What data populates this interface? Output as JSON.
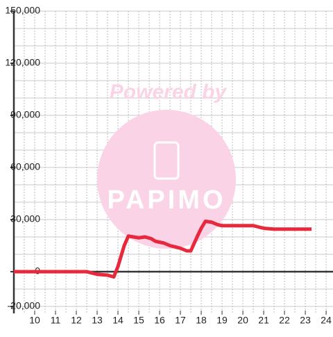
{
  "chart_data": {
    "type": "line",
    "x": [
      9,
      12.5,
      13,
      13.5,
      13.8,
      14,
      14.3,
      14.5,
      15,
      15.3,
      15.6,
      15.8,
      16.2,
      16.5,
      17,
      17.3,
      17.5,
      17.8,
      18,
      18.2,
      18.5,
      18.8,
      19,
      19.5,
      20,
      20.5,
      21,
      21.5,
      22,
      23.3
    ],
    "series": [
      {
        "color": "#e8283c",
        "values": [
          0,
          0,
          -1500,
          -2000,
          -3000,
          3000,
          15000,
          20500,
          19500,
          20000,
          19000,
          17500,
          16500,
          15000,
          13500,
          12000,
          12000,
          20000,
          25000,
          29000,
          28500,
          27000,
          26500,
          26500,
          26500,
          26500,
          25000,
          24500,
          24500,
          24500
        ]
      }
    ],
    "xlim": [
      9,
      24.33
    ],
    "ylim": [
      -24000,
      150000
    ],
    "xticks": [
      10,
      11,
      12,
      13,
      14,
      15,
      16,
      17,
      18,
      19,
      20,
      21,
      22,
      23,
      24
    ],
    "yticks": [
      {
        "value": 150000,
        "label": "150,000"
      },
      {
        "value": 120000,
        "label": "120,000"
      },
      {
        "value": 90000,
        "label": "90,000"
      },
      {
        "value": 60000,
        "label": "60,000"
      },
      {
        "value": 30000,
        "label": "30,000"
      },
      0,
      {
        "value": -20000,
        "label": "-20,000"
      }
    ],
    "xgrid": [
      9.5,
      10,
      10.5,
      11,
      11.5,
      12,
      12.5,
      13,
      13.5,
      14,
      14.5,
      15,
      15.5,
      16,
      16.5,
      17,
      17.5,
      18,
      18.5,
      19,
      19.5,
      20,
      20.5,
      21,
      21.5,
      22,
      22.5,
      23,
      23.5,
      24
    ],
    "ygrid": [
      150000,
      140000,
      130000,
      120000,
      110000,
      100000,
      90000,
      80000,
      70000,
      60000,
      50000,
      40000,
      30000,
      20000,
      10000,
      -10000,
      -20000
    ],
    "grid": true
  },
  "watermark": {
    "line1": "Powered by",
    "line2": "PAPIMO"
  }
}
